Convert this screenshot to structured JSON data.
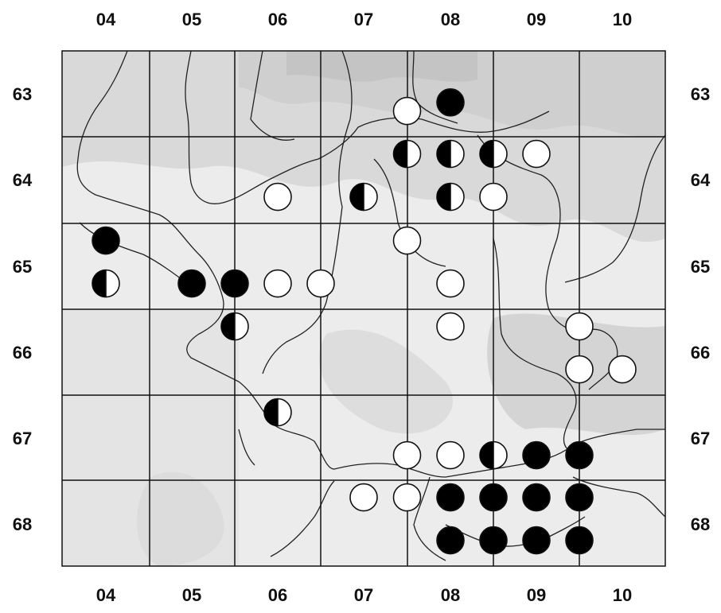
{
  "map": {
    "columns": [
      "04",
      "05",
      "06",
      "07",
      "08",
      "09",
      "10"
    ],
    "rows": [
      "63",
      "64",
      "65",
      "66",
      "67",
      "68"
    ],
    "colors": {
      "relief": "#dddddd",
      "relief_dark": "#c4c4c4",
      "filled": "#000000",
      "open": "#ffffff"
    },
    "records": [
      {
        "col": 7.5,
        "row": 63.7,
        "status": "open"
      },
      {
        "col": 8.0,
        "row": 63.6,
        "status": "filled"
      },
      {
        "col": 7.5,
        "row": 64.2,
        "status": "half"
      },
      {
        "col": 8.0,
        "row": 64.2,
        "status": "half"
      },
      {
        "col": 8.5,
        "row": 64.2,
        "status": "half"
      },
      {
        "col": 9.0,
        "row": 64.2,
        "status": "open"
      },
      {
        "col": 6.0,
        "row": 64.7,
        "status": "open"
      },
      {
        "col": 7.0,
        "row": 64.7,
        "status": "half"
      },
      {
        "col": 8.0,
        "row": 64.7,
        "status": "half"
      },
      {
        "col": 8.5,
        "row": 64.7,
        "status": "open"
      },
      {
        "col": 4.0,
        "row": 65.2,
        "status": "filled"
      },
      {
        "col": 7.5,
        "row": 65.2,
        "status": "open"
      },
      {
        "col": 4.0,
        "row": 65.7,
        "status": "half"
      },
      {
        "col": 5.0,
        "row": 65.7,
        "status": "filled"
      },
      {
        "col": 5.5,
        "row": 65.7,
        "status": "filled"
      },
      {
        "col": 6.0,
        "row": 65.7,
        "status": "open"
      },
      {
        "col": 6.5,
        "row": 65.7,
        "status": "open"
      },
      {
        "col": 8.0,
        "row": 65.7,
        "status": "open"
      },
      {
        "col": 5.5,
        "row": 66.2,
        "status": "half"
      },
      {
        "col": 8.0,
        "row": 66.2,
        "status": "open"
      },
      {
        "col": 9.5,
        "row": 66.2,
        "status": "open"
      },
      {
        "col": 9.5,
        "row": 66.7,
        "status": "open"
      },
      {
        "col": 10.0,
        "row": 66.7,
        "status": "open"
      },
      {
        "col": 6.0,
        "row": 67.2,
        "status": "half"
      },
      {
        "col": 7.5,
        "row": 67.7,
        "status": "open"
      },
      {
        "col": 8.0,
        "row": 67.7,
        "status": "open"
      },
      {
        "col": 8.5,
        "row": 67.7,
        "status": "half"
      },
      {
        "col": 9.0,
        "row": 67.7,
        "status": "filled"
      },
      {
        "col": 9.5,
        "row": 67.7,
        "status": "filled"
      },
      {
        "col": 7.0,
        "row": 68.2,
        "status": "open"
      },
      {
        "col": 7.5,
        "row": 68.2,
        "status": "open"
      },
      {
        "col": 8.0,
        "row": 68.2,
        "status": "filled"
      },
      {
        "col": 8.5,
        "row": 68.2,
        "status": "filled"
      },
      {
        "col": 9.0,
        "row": 68.2,
        "status": "filled"
      },
      {
        "col": 9.5,
        "row": 68.2,
        "status": "filled"
      },
      {
        "col": 8.0,
        "row": 68.7,
        "status": "filled"
      },
      {
        "col": 8.5,
        "row": 68.7,
        "status": "filled"
      },
      {
        "col": 9.0,
        "row": 68.7,
        "status": "filled"
      },
      {
        "col": 9.5,
        "row": 68.7,
        "status": "filled"
      }
    ]
  }
}
